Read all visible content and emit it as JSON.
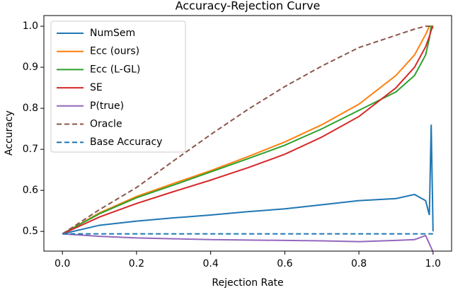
{
  "chart_data": {
    "type": "line",
    "title": "Accuracy-Rejection Curve",
    "xlabel": "Rejection Rate",
    "ylabel": "Accuracy",
    "x": [
      0,
      0.1,
      0.2,
      0.3,
      0.4,
      0.5,
      0.6,
      0.7,
      0.8,
      0.9,
      0.95,
      0.98,
      0.99,
      0.995,
      1.0
    ],
    "series": [
      {
        "name": "NumSem",
        "color": "#1f77b4",
        "linestyle": "solid",
        "values": [
          0.494,
          0.515,
          0.525,
          0.533,
          0.54,
          0.548,
          0.555,
          0.565,
          0.575,
          0.58,
          0.59,
          0.575,
          0.54,
          0.76,
          0.5
        ]
      },
      {
        "name": "Ecc (ours)",
        "color": "#ff7f0e",
        "linestyle": "solid",
        "values": [
          0.494,
          0.545,
          0.585,
          0.617,
          0.648,
          0.682,
          0.718,
          0.76,
          0.81,
          0.88,
          0.93,
          0.98,
          1.0,
          1.0,
          1.0
        ]
      },
      {
        "name": "Ecc (L-GL)",
        "color": "#2ca02c",
        "linestyle": "solid",
        "values": [
          0.494,
          0.543,
          0.582,
          0.613,
          0.645,
          0.677,
          0.71,
          0.75,
          0.795,
          0.84,
          0.88,
          0.93,
          0.97,
          1.0,
          1.0
        ]
      },
      {
        "name": "SE",
        "color": "#d62728",
        "linestyle": "solid",
        "values": [
          0.494,
          0.535,
          0.568,
          0.597,
          0.625,
          0.655,
          0.688,
          0.73,
          0.78,
          0.85,
          0.9,
          0.95,
          0.975,
          0.99,
          1.0
        ]
      },
      {
        "name": "P(true)",
        "color": "#9467bd",
        "linestyle": "solid",
        "values": [
          0.494,
          0.488,
          0.484,
          0.482,
          0.48,
          0.479,
          0.478,
          0.477,
          0.475,
          0.478,
          0.48,
          0.49,
          0.47,
          0.46,
          0.45
        ]
      },
      {
        "name": "Oracle",
        "color": "#8c564b",
        "linestyle": "dashed",
        "values": [
          0.494,
          0.553,
          0.607,
          0.672,
          0.736,
          0.797,
          0.853,
          0.903,
          0.948,
          0.978,
          0.993,
          1.0,
          1.0,
          1.0,
          1.0
        ]
      },
      {
        "name": "Base Accuracy",
        "color": "#1f77b4",
        "linestyle": "dashed",
        "values": [
          0.494,
          0.494,
          0.494,
          0.494,
          0.494,
          0.494,
          0.494,
          0.494,
          0.494,
          0.494,
          0.494,
          0.494,
          0.494,
          0.494,
          0.494
        ]
      }
    ],
    "xlim": [
      -0.05,
      1.05
    ],
    "ylim": [
      0.452,
      1.026
    ],
    "xticks": [
      {
        "value": 0,
        "label": "0.0"
      },
      0.2,
      0.4,
      0.6,
      0.8,
      {
        "value": 1,
        "label": "1.0"
      }
    ],
    "yticks": [
      0.5,
      0.6,
      0.7,
      0.8,
      0.9,
      {
        "value": 1,
        "label": "1.0"
      }
    ],
    "legend": "upper left",
    "grid": false
  }
}
